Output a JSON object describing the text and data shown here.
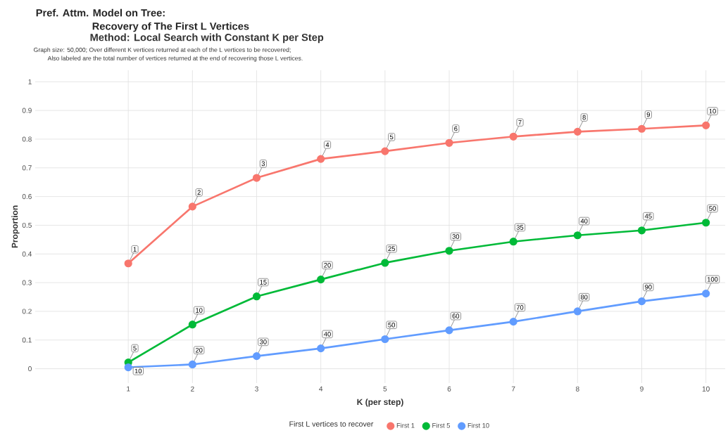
{
  "chart_data": {
    "type": "line",
    "title": "Pref. Attm. Model on Tree:",
    "subtitle": "Recovery of The First L Vertices",
    "annotations": [
      "Method: Local Search with Constant K per Step",
      "Graph size: 50,000; Over different K vertices returned at each of the L vertices to be recovered;",
      "Also labeled are the total number of vertices returned at the end of recovering those L vertices.",
      {
        "text": "1",
        "x": 1,
        "y": 0.367
      },
      {
        "text": "2",
        "x": 2,
        "y": 0.565
      },
      {
        "text": "3",
        "x": 3,
        "y": 0.665
      },
      {
        "text": "4",
        "x": 4,
        "y": 0.731
      },
      {
        "text": "5",
        "x": 5,
        "y": 0.758
      },
      {
        "text": "6",
        "x": 6,
        "y": 0.787
      },
      {
        "text": "7",
        "x": 7,
        "y": 0.809
      },
      {
        "text": "8",
        "x": 8,
        "y": 0.826
      },
      {
        "text": "9",
        "x": 9,
        "y": 0.836
      },
      {
        "text": "10",
        "x": 10,
        "y": 0.848
      },
      {
        "text": "5",
        "x": 1,
        "y": 0.022
      },
      {
        "text": "10",
        "x": 2,
        "y": 0.154
      },
      {
        "text": "15",
        "x": 3,
        "y": 0.252
      },
      {
        "text": "20",
        "x": 4,
        "y": 0.311
      },
      {
        "text": "25",
        "x": 5,
        "y": 0.369
      },
      {
        "text": "30",
        "x": 6,
        "y": 0.411
      },
      {
        "text": "35",
        "x": 7,
        "y": 0.443
      },
      {
        "text": "40",
        "x": 8,
        "y": 0.465
      },
      {
        "text": "45",
        "x": 9,
        "y": 0.482
      },
      {
        "text": "50",
        "x": 10,
        "y": 0.509
      },
      {
        "text": "10",
        "x": 1,
        "y": 0.005
      },
      {
        "text": "20",
        "x": 2,
        "y": 0.015
      },
      {
        "text": "30",
        "x": 3,
        "y": 0.044
      },
      {
        "text": "40",
        "x": 4,
        "y": 0.071
      },
      {
        "text": "50",
        "x": 5,
        "y": 0.103
      },
      {
        "text": "60",
        "x": 6,
        "y": 0.134
      },
      {
        "text": "70",
        "x": 7,
        "y": 0.164
      },
      {
        "text": "80",
        "x": 8,
        "y": 0.2
      },
      {
        "text": "90",
        "x": 9,
        "y": 0.235
      },
      {
        "text": "100",
        "x": 10,
        "y": 0.262
      }
    ],
    "xlabel": "K (per step)",
    "ylabel": "Proportion",
    "legend_title": "First L vertices to recover",
    "x": [
      1,
      2,
      3,
      4,
      5,
      6,
      7,
      8,
      9,
      10
    ],
    "series": [
      {
        "name": "First 1",
        "color": "#f8766d",
        "values": [
          0.367,
          0.565,
          0.665,
          0.731,
          0.758,
          0.787,
          0.809,
          0.826,
          0.836,
          0.848
        ]
      },
      {
        "name": "First 5",
        "color": "#00ba38",
        "values": [
          0.022,
          0.154,
          0.252,
          0.311,
          0.369,
          0.411,
          0.443,
          0.465,
          0.482,
          0.509
        ]
      },
      {
        "name": "First 10",
        "color": "#619cff",
        "values": [
          0.005,
          0.015,
          0.044,
          0.071,
          0.103,
          0.134,
          0.164,
          0.2,
          0.235,
          0.262
        ]
      }
    ],
    "xlim": [
      -0.45,
      10.3
    ],
    "ylim": [
      -0.05,
      1.04
    ],
    "xticks": [
      1,
      2,
      3,
      4,
      5,
      6,
      7,
      8,
      9,
      10
    ],
    "yticks": [
      0,
      0.1,
      0.2,
      0.3,
      0.4,
      0.5,
      0.6,
      0.7,
      0.8,
      0.9,
      1
    ],
    "grid": true,
    "legend": "bottom",
    "marker": "circle",
    "line_style": "solid"
  }
}
